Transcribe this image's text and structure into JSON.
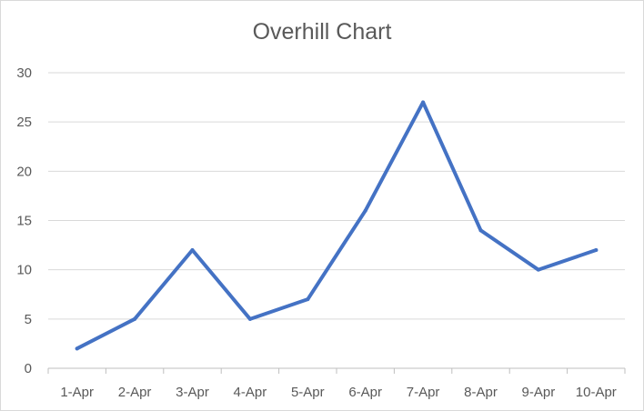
{
  "chart_data": {
    "type": "line",
    "title": "Overhill Chart",
    "categories": [
      "1-Apr",
      "2-Apr",
      "3-Apr",
      "4-Apr",
      "5-Apr",
      "6-Apr",
      "7-Apr",
      "8-Apr",
      "9-Apr",
      "10-Apr"
    ],
    "series": [
      {
        "values": [
          2,
          5,
          12,
          5,
          7,
          16,
          27,
          14,
          10,
          12
        ],
        "color": "#4472c4"
      }
    ],
    "xlabel": "",
    "ylabel": "",
    "ylim": [
      0,
      30
    ],
    "yticks": [
      0,
      5,
      10,
      15,
      20,
      25,
      30
    ],
    "grid": true,
    "legend": "none",
    "colors": {
      "gridline": "#d9d9d9",
      "axis": "#bfbfbf",
      "text": "#595959"
    }
  }
}
